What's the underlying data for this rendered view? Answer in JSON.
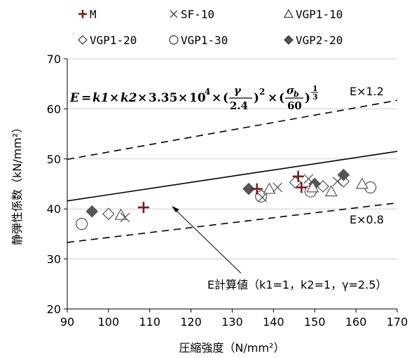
{
  "chart_data": {
    "type": "scatter",
    "title": "",
    "xlabel": "圧縮強度（N/mm²）",
    "ylabel": "静弾性係数（kN/mm²）",
    "xlim": [
      90,
      170
    ],
    "ylim": [
      20,
      70
    ],
    "xticks": [
      "90",
      "100",
      "110",
      "120",
      "130",
      "140",
      "150",
      "160",
      "170"
    ],
    "yticks": [
      "20",
      "30",
      "40",
      "50",
      "60",
      "70"
    ],
    "grid": "horizontal",
    "legend_position": "top",
    "series": [
      {
        "name": "M",
        "marker": "plus",
        "color": "#7b1c1c",
        "points": [
          [
            108.5,
            40.3
          ],
          [
            136.0,
            44.0
          ],
          [
            146.0,
            46.5
          ],
          [
            146.8,
            44.3
          ]
        ]
      },
      {
        "name": "SF-10",
        "marker": "x",
        "color": "#555555",
        "points": [
          [
            104.0,
            38.3
          ],
          [
            137.3,
            42.3
          ],
          [
            141.0,
            44.3
          ],
          [
            148.5,
            46.0
          ],
          [
            155.5,
            45.5
          ]
        ]
      },
      {
        "name": "VGP1-10",
        "marker": "triangle",
        "color": "#555555",
        "points": [
          [
            103.0,
            38.8
          ],
          [
            139.0,
            44.0
          ],
          [
            149.5,
            44.3
          ],
          [
            154.0,
            43.5
          ],
          [
            161.5,
            45.0
          ]
        ]
      },
      {
        "name": "VGP1-20",
        "marker": "diamond",
        "color": "#555555",
        "points": [
          [
            100.0,
            39.0
          ],
          [
            145.3,
            45.3
          ],
          [
            152.0,
            44.5
          ],
          [
            157.0,
            45.5
          ]
        ]
      },
      {
        "name": "VGP1-30",
        "marker": "circle",
        "color": "#555555",
        "points": [
          [
            93.5,
            37.0
          ],
          [
            137.0,
            42.5
          ],
          [
            149.0,
            43.5
          ],
          [
            163.5,
            44.3
          ]
        ]
      },
      {
        "name": "VGP2-20",
        "marker": "filled-diamond",
        "color": "#555555",
        "points": [
          [
            96.0,
            39.5
          ],
          [
            134.0,
            44.0
          ],
          [
            150.0,
            45.0
          ],
          [
            157.0,
            46.8
          ]
        ]
      }
    ],
    "curves": [
      {
        "name": "E×1.2",
        "style": "dashed",
        "points": [
          [
            90,
            49.9
          ],
          [
            170,
            61.7
          ]
        ]
      },
      {
        "name": "E",
        "style": "solid",
        "points": [
          [
            90,
            41.6
          ],
          [
            170,
            51.5
          ]
        ]
      },
      {
        "name": "E×0.8",
        "style": "dashed",
        "points": [
          [
            90,
            33.3
          ],
          [
            170,
            41.2
          ]
        ]
      }
    ],
    "annotations": {
      "upper_label": "E×1.2",
      "lower_label": "E×0.8",
      "calc_label": "E計算値（k1=1，k2=1，γ=2.5）",
      "formula": "E = k1 × k2 × 3.35 × 10⁴ × (γ/2.4)² × (σb/60)^(1/3)"
    }
  }
}
